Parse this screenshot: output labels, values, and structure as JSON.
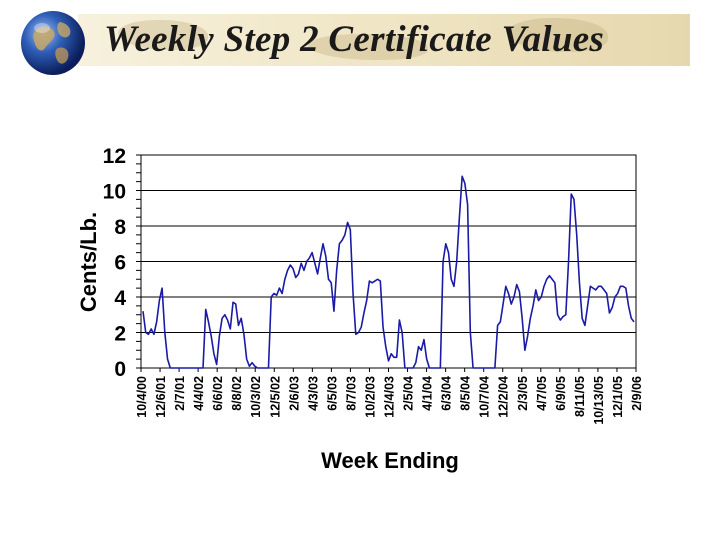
{
  "page": {
    "title": "Weekly Step 2 Certificate Values"
  },
  "icons": {
    "logo": "globe-icon"
  },
  "colors": {
    "series": "#1a1aa6",
    "gridline": "#000000",
    "banner": "#efe4c2"
  },
  "chart_data": {
    "type": "line",
    "title": "",
    "xlabel": "Week Ending",
    "ylabel": "Cents/Lb.",
    "ylim": [
      0,
      12
    ],
    "yticks": [
      0,
      2,
      4,
      6,
      8,
      10,
      12
    ],
    "grid": "horizontal",
    "legend": "none",
    "x_tick_labels": [
      "10/4/00",
      "12/6/01",
      "2/7/01",
      "4/4/02",
      "6/6/02",
      "8/8/02",
      "10/3/02",
      "12/5/02",
      "2/6/03",
      "4/3/03",
      "6/5/03",
      "8/7/03",
      "10/2/03",
      "12/4/03",
      "2/5/04",
      "4/1/04",
      "6/3/04",
      "8/5/04",
      "10/7/04",
      "12/2/04",
      "2/3/05",
      "4/7/05",
      "6/9/05",
      "8/11/05",
      "10/13/05",
      "12/1/05",
      "2/9/06"
    ],
    "series": [
      {
        "values": [
          3.2,
          2.0,
          1.9,
          2.2,
          1.9,
          2.6,
          3.8,
          4.5,
          2.0,
          0.5,
          0,
          0,
          0,
          0,
          0,
          0,
          0,
          0,
          0,
          0,
          0,
          0,
          0,
          3.3,
          2.6,
          1.8,
          0.8,
          0.2,
          1.8,
          2.8,
          3.0,
          2.7,
          2.2,
          3.7,
          3.6,
          2.4,
          2.8,
          1.9,
          0.5,
          0.1,
          0.3,
          0.1,
          0,
          0,
          0,
          0,
          0,
          4.0,
          4.2,
          4.1,
          4.5,
          4.2,
          5.0,
          5.5,
          5.8,
          5.6,
          5.1,
          5.3,
          5.9,
          5.5,
          6.0,
          6.2,
          6.5,
          5.9,
          5.3,
          6.2,
          7.0,
          6.3,
          5.0,
          4.8,
          3.2,
          5.5,
          7.0,
          7.2,
          7.5,
          8.2,
          7.8,
          4.2,
          1.9,
          2.0,
          2.3,
          3.1,
          3.8,
          4.9,
          4.8,
          4.9,
          5.0,
          4.9,
          2.3,
          1.2,
          0.4,
          0.8,
          0.6,
          0.6,
          2.7,
          2.0,
          0,
          0,
          0,
          0,
          0.3,
          1.2,
          1.0,
          1.6,
          0.5,
          0,
          0,
          0,
          0,
          0,
          6.0,
          7.0,
          6.5,
          5.0,
          4.6,
          6.0,
          8.5,
          10.8,
          10.4,
          9.2,
          2.0,
          0,
          0,
          0,
          0,
          0,
          0,
          0,
          0,
          0,
          2.4,
          2.6,
          3.6,
          4.6,
          4.2,
          3.6,
          4.0,
          4.7,
          4.3,
          2.8,
          1.0,
          1.8,
          2.8,
          3.5,
          4.4,
          3.8,
          4.0,
          4.6,
          5.0,
          5.2,
          5.0,
          4.8,
          3.0,
          2.7,
          2.9,
          3.0,
          6.0,
          9.8,
          9.5,
          7.5,
          4.8,
          2.8,
          2.4,
          3.5,
          4.6,
          4.5,
          4.4,
          4.6,
          4.6,
          4.4,
          4.2,
          3.1,
          3.4,
          4.0,
          4.2,
          4.6,
          4.6,
          4.5,
          3.5,
          2.8,
          2.6
        ]
      }
    ]
  }
}
